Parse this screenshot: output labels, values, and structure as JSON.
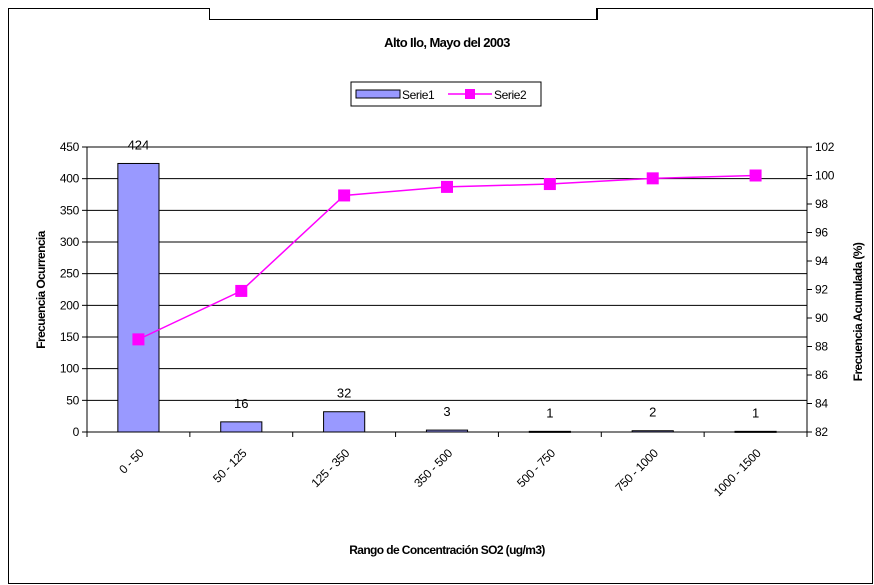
{
  "chart_data": {
    "type": "bar+line",
    "title": "Alto Ilo, Mayo del 2003",
    "xlabel": "Rango de Concentración SO2 (ug/m3)",
    "ylabel": "Frecuencia Ocurrencia",
    "y2label": "Frecuencia Acumulada (%)",
    "categories": [
      "0 - 50",
      "50 - 125",
      "125 - 350",
      "350 - 500",
      "500 - 750",
      "750 - 1000",
      "1000 - 1500"
    ],
    "series": [
      {
        "name": "Serie1",
        "type": "bar",
        "axis": "left",
        "color": "#9999ff",
        "values": [
          424,
          16,
          32,
          3,
          1,
          2,
          1
        ],
        "labels": [
          "424",
          "16",
          "32",
          "3",
          "1",
          "2",
          "1"
        ]
      },
      {
        "name": "Serie2",
        "type": "line",
        "axis": "right",
        "color": "#ff00ff",
        "values": [
          88.5,
          91.9,
          98.6,
          99.2,
          99.4,
          99.8,
          100
        ]
      }
    ],
    "ylim": [
      0,
      450
    ],
    "yticks": [
      0,
      50,
      100,
      150,
      200,
      250,
      300,
      350,
      400,
      450
    ],
    "y2lim": [
      82,
      102
    ],
    "y2ticks": [
      82,
      84,
      86,
      88,
      90,
      92,
      94,
      96,
      98,
      100,
      102
    ],
    "grid": true,
    "legend": "top"
  }
}
